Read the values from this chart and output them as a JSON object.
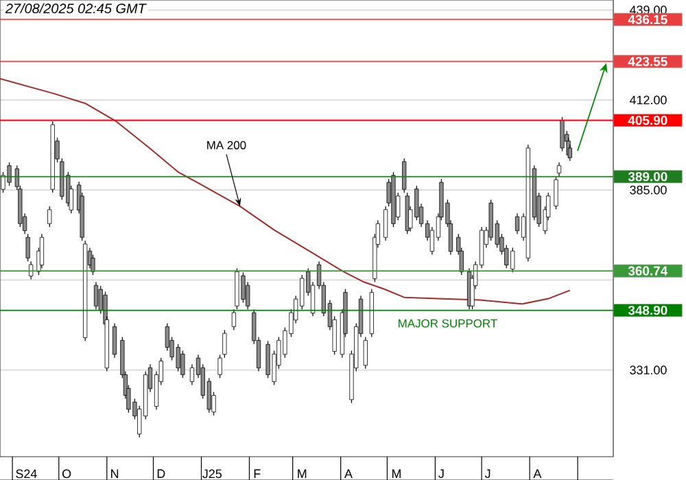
{
  "chart_data": {
    "type": "candlestick",
    "title": "27/08/2025 02:45 GMT",
    "xlim": [
      "2024-08-24",
      "2025-09-24"
    ],
    "ylim": [
      305,
      442
    ],
    "xticks": [
      {
        "value": "2024-09-10",
        "label": "S24"
      },
      {
        "value": "2024-10-06",
        "label": "O"
      },
      {
        "value": "2024-11-06",
        "label": "N"
      },
      {
        "value": "2024-12-06",
        "label": "D"
      },
      {
        "value": "2025-01-08",
        "label": "J25"
      },
      {
        "value": "2025-02-06",
        "label": "F"
      },
      {
        "value": "2025-03-07",
        "label": "M"
      },
      {
        "value": "2025-04-06",
        "label": "A"
      },
      {
        "value": "2025-05-07",
        "label": "M"
      },
      {
        "value": "2025-06-05",
        "label": "J"
      },
      {
        "value": "2025-07-05",
        "label": "J"
      },
      {
        "value": "2025-08-06",
        "label": "A"
      }
    ],
    "yticks": [
      {
        "value": 331,
        "label": "331.00"
      },
      {
        "value": 358,
        "label": null
      },
      {
        "value": 385,
        "label": "385.00"
      },
      {
        "value": 412,
        "label": "412.00"
      },
      {
        "value": 439,
        "label": "439.00"
      }
    ],
    "grid": "y",
    "series": [
      {
        "type": "line",
        "color": "#a52a2a",
        "x": [
          "2024-08-24",
          "2024-09-28",
          "2024-10-18",
          "2024-11-07",
          "2024-11-29",
          "2024-12-17",
          "2024-12-30",
          "2025-01-26",
          "2025-02-17",
          "2025-03-11",
          "2025-04-02",
          "2025-04-16",
          "2025-04-29",
          "2025-05-12",
          "2025-06-03",
          "2025-06-30",
          "2025-07-27",
          "2025-08-13",
          "2025-08-27"
        ],
        "values": [
          418.4,
          413.9,
          411.0,
          405.6,
          397.4,
          390.4,
          387.1,
          380.1,
          373.0,
          366.9,
          360.7,
          357.4,
          355.3,
          352.8,
          352.4,
          352.0,
          350.8,
          352.4,
          354.9
        ]
      },
      {
        "colors": [
          "#ffffff",
          "#8a8a8a",
          "#8a8a8a",
          "#8a8a8a",
          "#8a8a8a",
          "#8a8a8a",
          "#ffffff",
          "#ffffff",
          "#ffffff",
          "#ffffff",
          "#ffffff",
          "#8a8a8a",
          "#8a8a8a",
          "#8a8a8a",
          "#ffffff",
          "#8a8a8a",
          "#8a8a8a",
          "#ffffff",
          "#8a8a8a",
          "#8a8a8a",
          "#8a8a8a",
          "#8a8a8a",
          "#8a8a8a",
          "#ffffff",
          "#8a8a8a",
          "#8a8a8a",
          "#8a8a8a",
          "#8a8a8a",
          "#8a8a8a",
          "#ffffff",
          "#ffffff",
          "#8a8a8a",
          "#ffffff",
          "#ffffff",
          "#8a8a8a",
          "#8a8a8a",
          "#8a8a8a",
          "#8a8a8a",
          "#ffffff",
          "#8a8a8a",
          "#8a8a8a",
          "#8a8a8a",
          "#ffffff",
          "#ffffff",
          "#ffffff",
          "#ffffff",
          "#ffffff",
          "#8a8a8a",
          "#8a8a8a",
          "#8a8a8a",
          "#8a8a8a",
          "#8a8a8a",
          "#ffffff",
          "#ffffff",
          "#ffffff",
          "#ffffff",
          "#ffffff",
          "#ffffff",
          "#8a8a8a",
          "#ffffff",
          "#8a8a8a",
          "#8a8a8a",
          "#8a8a8a",
          "#ffffff",
          "#ffffff",
          "#8a8a8a",
          "#ffffff",
          "#ffffff",
          "#8a8a8a",
          "#ffffff",
          "#ffffff",
          "#ffffff",
          "#ffffff",
          "#ffffff",
          "#8a8a8a",
          "#8a8a8a",
          "#ffffff",
          "#8a8a8a",
          "#8a8a8a",
          "#ffffff",
          "#8a8a8a",
          "#8a8a8a",
          "#8a8a8a",
          "#ffffff",
          "#ffffff",
          "#8a8a8a",
          "#8a8a8a",
          "#8a8a8a",
          "#8a8a8a",
          "#8a8a8a",
          "#8a8a8a",
          "#ffffff",
          "#ffffff",
          "#ffffff",
          "#ffffff",
          "#8a8a8a",
          "#8a8a8a",
          "#8a8a8a",
          "#8a8a8a",
          "#ffffff",
          "#8a8a8a",
          "#ffffff",
          "#ffffff",
          "#8a8a8a",
          "#8a8a8a",
          "#ffffff",
          "#ffffff",
          "#ffffff",
          "#ffffff",
          "#8a8a8a",
          "#8a8a8a",
          "#8a8a8a",
          "#8a8a8a"
        ],
        "x": [
          "2024-08-26",
          "2024-08-30",
          "2024-09-04",
          "2024-09-06",
          "2024-09-09",
          "2024-09-11",
          "2024-09-13",
          "2024-09-18",
          "2024-09-20",
          "2024-09-25",
          "2024-09-27",
          "2024-09-30",
          "2024-10-03",
          "2024-10-07",
          "2024-10-09",
          "2024-10-14",
          "2024-10-16",
          "2024-10-18",
          "2024-10-21",
          "2024-10-23",
          "2024-10-25",
          "2024-10-28",
          "2024-10-31",
          "2024-11-01",
          "2024-11-06",
          "2024-11-11",
          "2024-11-13",
          "2024-11-15",
          "2024-11-19",
          "2024-11-22",
          "2024-11-26",
          "2024-11-29",
          "2024-12-03",
          "2024-12-06",
          "2024-12-10",
          "2024-12-13",
          "2024-12-17",
          "2024-12-20",
          "2024-12-26",
          "2024-12-30",
          "2025-01-02",
          "2025-01-06",
          "2025-01-09",
          "2025-01-13",
          "2025-01-16",
          "2025-01-22",
          "2025-01-24",
          "2025-01-28",
          "2025-01-31",
          "2025-02-04",
          "2025-02-07",
          "2025-02-13",
          "2025-02-17",
          "2025-02-20",
          "2025-02-24",
          "2025-02-28",
          "2025-03-03",
          "2025-03-07",
          "2025-03-11",
          "2025-03-14",
          "2025-03-18",
          "2025-03-21",
          "2025-03-25",
          "2025-03-28",
          "2025-04-02",
          "2025-04-04",
          "2025-04-08",
          "2025-04-11",
          "2025-04-14",
          "2025-04-17",
          "2025-04-21",
          "2025-04-23",
          "2025-04-25",
          "2025-04-30",
          "2025-05-02",
          "2025-05-05",
          "2025-05-08",
          "2025-05-12",
          "2025-05-14",
          "2025-05-16",
          "2025-05-20",
          "2025-05-23",
          "2025-05-27",
          "2025-05-30",
          "2025-06-03",
          "2025-06-05",
          "2025-06-09",
          "2025-06-11",
          "2025-06-16",
          "2025-06-18",
          "2025-06-23",
          "2025-06-25",
          "2025-06-27",
          "2025-07-01",
          "2025-07-04",
          "2025-07-07",
          "2025-07-11",
          "2025-07-14",
          "2025-07-17",
          "2025-07-21",
          "2025-07-24",
          "2025-07-28",
          "2025-07-31",
          "2025-08-04",
          "2025-08-07",
          "2025-08-11",
          "2025-08-13",
          "2025-08-18",
          "2025-08-20",
          "2025-08-22",
          "2025-08-25",
          "2025-08-26",
          "2025-08-27"
        ],
        "ohlc": [
          [
            385.2,
            390.4,
            384.2,
            389.4
          ],
          [
            392.3,
            393.3,
            386.3,
            387.3
          ],
          [
            391.4,
            392.4,
            385.0,
            386.0
          ],
          [
            385.3,
            386.3,
            373.9,
            374.9
          ],
          [
            377.0,
            378.0,
            371.8,
            372.8
          ],
          [
            370.8,
            371.8,
            363.6,
            364.6
          ],
          [
            359.2,
            363.6,
            358.2,
            362.6
          ],
          [
            360.5,
            367.7,
            359.5,
            366.7
          ],
          [
            362.5,
            371.8,
            361.5,
            370.8
          ],
          [
            374.9,
            380.1,
            373.9,
            379.1
          ],
          [
            385.2,
            405.6,
            384.2,
            404.6
          ],
          [
            399.7,
            400.7,
            393.3,
            394.3
          ],
          [
            393.5,
            394.5,
            382.1,
            383.1
          ],
          [
            389.4,
            390.4,
            380.1,
            381.1
          ],
          [
            379.0,
            386.3,
            378.0,
            385.3
          ],
          [
            386.5,
            387.5,
            378.0,
            379.0
          ],
          [
            383.2,
            384.2,
            369.8,
            370.8
          ],
          [
            340.7,
            369.8,
            339.7,
            368.8
          ],
          [
            366.7,
            367.7,
            361.5,
            362.5
          ],
          [
            364.6,
            365.6,
            359.5,
            360.5
          ],
          [
            356.4,
            357.4,
            349.2,
            350.2
          ],
          [
            355.2,
            356.2,
            347.9,
            348.9
          ],
          [
            353.5,
            354.5,
            343.8,
            344.8
          ],
          [
            331.6,
            347.1,
            330.6,
            346.1
          ],
          [
            344.0,
            345.0,
            334.7,
            335.7
          ],
          [
            339.9,
            340.9,
            328.6,
            329.6
          ],
          [
            329.6,
            330.6,
            322.4,
            323.4
          ],
          [
            325.5,
            326.5,
            318.2,
            319.2
          ],
          [
            321.4,
            322.4,
            316.2,
            317.2
          ],
          [
            311.8,
            320.3,
            310.8,
            319.3
          ],
          [
            317.2,
            330.6,
            316.2,
            329.6
          ],
          [
            331.7,
            332.7,
            324.4,
            325.4
          ],
          [
            320.1,
            330.6,
            319.1,
            329.6
          ],
          [
            327.5,
            334.7,
            326.5,
            333.7
          ],
          [
            344.0,
            345.0,
            336.8,
            337.8
          ],
          [
            339.9,
            340.9,
            333.9,
            334.9
          ],
          [
            337.8,
            338.8,
            330.6,
            331.6
          ],
          [
            335.8,
            336.8,
            328.6,
            329.6
          ],
          [
            327.5,
            332.7,
            326.5,
            331.7
          ],
          [
            334.6,
            335.6,
            328.6,
            329.6
          ],
          [
            331.7,
            332.7,
            322.4,
            323.4
          ],
          [
            327.6,
            328.6,
            318.2,
            319.2
          ],
          [
            318.4,
            324.4,
            317.4,
            323.4
          ],
          [
            329.6,
            335.6,
            328.6,
            334.6
          ],
          [
            335.7,
            343.0,
            334.7,
            342.0
          ],
          [
            344.0,
            349.2,
            343.0,
            348.2
          ],
          [
            350.2,
            361.5,
            349.2,
            360.5
          ],
          [
            359.3,
            360.3,
            351.2,
            352.2
          ],
          [
            356.4,
            357.4,
            349.2,
            350.2
          ],
          [
            348.2,
            349.2,
            338.8,
            339.8
          ],
          [
            339.9,
            340.9,
            330.6,
            331.6
          ],
          [
            338.7,
            339.7,
            328.6,
            329.6
          ],
          [
            327.5,
            336.8,
            326.5,
            335.8
          ],
          [
            332.4,
            340.9,
            331.4,
            339.9
          ],
          [
            335.7,
            343.8,
            334.7,
            342.8
          ],
          [
            341.9,
            349.2,
            340.9,
            348.2
          ],
          [
            346.0,
            353.3,
            345.0,
            352.3
          ],
          [
            350.2,
            359.5,
            349.2,
            358.5
          ],
          [
            360.5,
            361.5,
            353.3,
            354.3
          ],
          [
            348.1,
            357.4,
            347.1,
            356.4
          ],
          [
            362.6,
            363.6,
            355.3,
            356.3
          ],
          [
            356.4,
            357.4,
            347.1,
            348.1
          ],
          [
            351.0,
            352.0,
            343.0,
            344.0
          ],
          [
            336.6,
            347.1,
            335.6,
            346.1
          ],
          [
            335.7,
            349.2,
            334.7,
            348.2
          ],
          [
            354.3,
            355.3,
            340.9,
            341.9
          ],
          [
            322.1,
            336.8,
            321.1,
            335.8
          ],
          [
            331.6,
            345.0,
            330.6,
            344.0
          ],
          [
            352.3,
            353.3,
            340.9,
            341.9
          ],
          [
            332.4,
            340.9,
            331.4,
            339.9
          ],
          [
            341.9,
            355.3,
            340.9,
            354.3
          ],
          [
            358.4,
            371.8,
            357.4,
            370.8
          ],
          [
            368.7,
            375.9,
            367.7,
            374.9
          ],
          [
            370.8,
            380.1,
            369.8,
            379.1
          ],
          [
            387.3,
            388.3,
            380.1,
            381.1
          ],
          [
            389.4,
            390.4,
            373.9,
            374.9
          ],
          [
            376.9,
            384.2,
            375.9,
            383.2
          ],
          [
            393.5,
            394.5,
            384.2,
            385.2
          ],
          [
            383.2,
            384.2,
            371.8,
            372.8
          ],
          [
            373.6,
            380.1,
            372.6,
            379.1
          ],
          [
            385.3,
            386.3,
            375.9,
            376.9
          ],
          [
            379.9,
            380.9,
            373.9,
            374.9
          ],
          [
            374.9,
            375.9,
            369.8,
            370.8
          ],
          [
            366.6,
            373.9,
            365.6,
            372.9
          ],
          [
            370.8,
            378.0,
            369.8,
            377.0
          ],
          [
            387.3,
            388.3,
            375.9,
            376.9
          ],
          [
            381.1,
            382.1,
            373.9,
            374.9
          ],
          [
            374.9,
            375.9,
            365.6,
            366.6
          ],
          [
            370.8,
            371.8,
            365.6,
            366.6
          ],
          [
            366.7,
            367.7,
            359.5,
            360.5
          ],
          [
            360.5,
            361.5,
            349.2,
            350.2
          ],
          [
            350.2,
            359.5,
            349.2,
            358.5
          ],
          [
            356.3,
            363.6,
            355.3,
            362.6
          ],
          [
            362.5,
            373.9,
            361.5,
            372.9
          ],
          [
            368.7,
            373.9,
            367.7,
            372.9
          ],
          [
            381.1,
            382.1,
            369.8,
            370.8
          ],
          [
            374.9,
            375.9,
            367.7,
            368.7
          ],
          [
            370.8,
            371.8,
            365.6,
            366.6
          ],
          [
            367.5,
            368.5,
            361.5,
            362.5
          ],
          [
            361.3,
            367.7,
            360.3,
            366.7
          ],
          [
            377.0,
            378.0,
            371.8,
            372.8
          ],
          [
            370.8,
            378.0,
            369.8,
            377.0
          ],
          [
            364.6,
            398.6,
            363.6,
            397.6
          ],
          [
            391.4,
            392.4,
            375.9,
            376.9
          ],
          [
            383.2,
            384.2,
            373.9,
            374.9
          ],
          [
            372.8,
            380.1,
            371.8,
            379.1
          ],
          [
            376.9,
            384.2,
            375.9,
            383.2
          ],
          [
            380.2,
            389.1,
            379.2,
            388.1
          ],
          [
            390.1,
            393.3,
            389.1,
            392.3
          ],
          [
            405.9,
            406.9,
            396.6,
            397.6
          ],
          [
            401.7,
            402.7,
            398.6,
            399.6
          ],
          [
            399.7,
            400.7,
            394.5,
            395.5
          ],
          [
            397.6,
            398.6,
            393.7,
            394.7
          ]
        ]
      }
    ],
    "ref_lines": [
      {
        "axis": "y",
        "value": 436.15,
        "label": "436.15",
        "color": "#e84040"
      },
      {
        "axis": "y",
        "value": 423.55,
        "label": "423.55",
        "color": "#e84040"
      },
      {
        "axis": "y",
        "value": 405.9,
        "label": "405.90",
        "color": "#ff0000"
      },
      {
        "axis": "y",
        "value": 389.0,
        "label": "389.00",
        "color": "#1e7d1e"
      },
      {
        "axis": "y",
        "value": 360.74,
        "label": "360.74",
        "color": "#3a9a3a"
      },
      {
        "axis": "y",
        "value": 348.9,
        "label": "348.90",
        "color": "#008000"
      }
    ],
    "annotations": [
      {
        "text": "MA 200",
        "x": "2025-01-26",
        "y": 380.1
      },
      {
        "text": "MAJOR SUPPORT",
        "x": "2025-06-09",
        "y": 348.9
      }
    ]
  }
}
